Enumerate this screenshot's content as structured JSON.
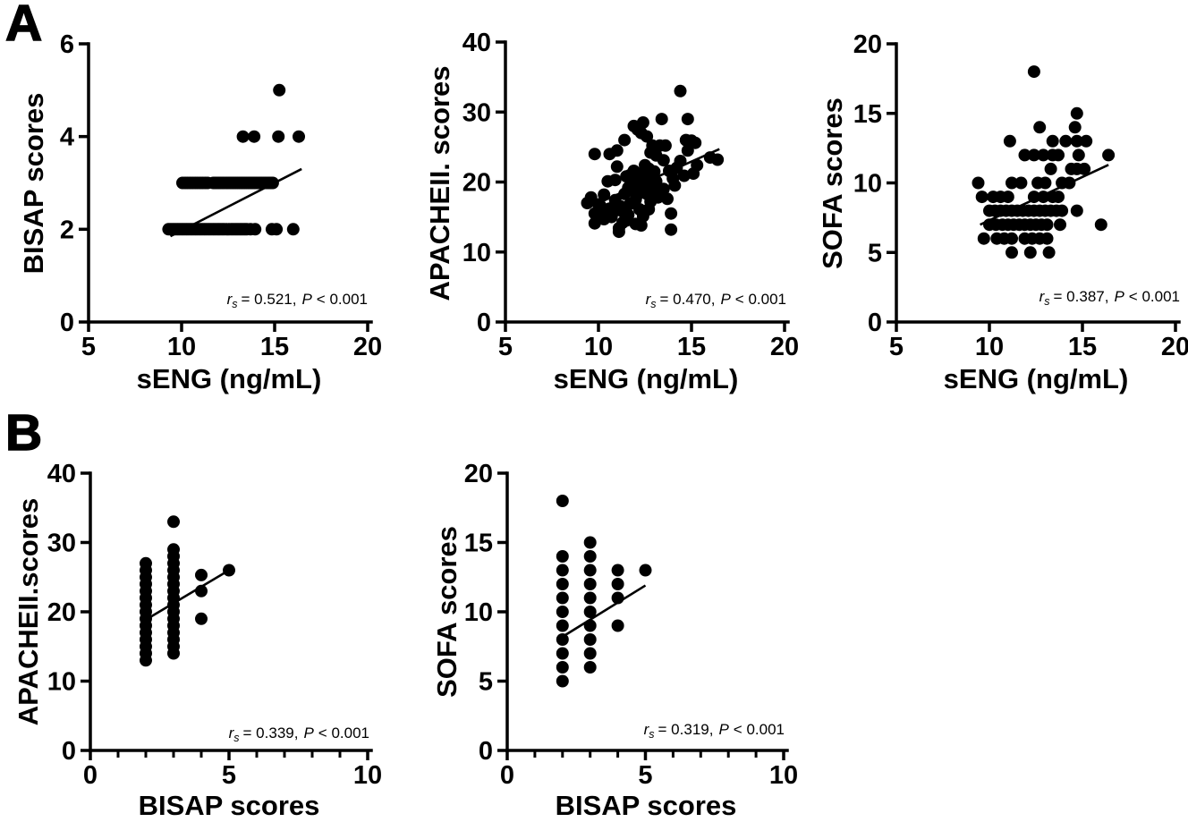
{
  "figure": {
    "ink": "#000000",
    "background": "#ffffff",
    "panel_labels": [
      {
        "label": "A"
      },
      {
        "label": "B"
      }
    ]
  },
  "chart_data": [
    {
      "type": "scatter",
      "panel": "A",
      "xlabel": "sENG (ng/mL)",
      "ylabel": "BISAP scores",
      "xlim": [
        5,
        20
      ],
      "ylim": [
        0,
        6
      ],
      "x_ticks": [
        5,
        10,
        15,
        20
      ],
      "y_ticks": [
        0,
        2,
        4,
        6
      ],
      "x_minor_ticks": [],
      "grid": false,
      "marker_color": "#000000",
      "annotation": {
        "r_label": "r",
        "r_sub": "s",
        "r_value": "= 0.521,",
        "p_label": "P",
        "p_value": "< 0.001"
      },
      "trend_line": [
        [
          9.4,
          1.85
        ],
        [
          16.45,
          3.3
        ]
      ],
      "points": [
        [
          9.3,
          2
        ],
        [
          9.42,
          2
        ],
        [
          9.54,
          2
        ],
        [
          9.66,
          2
        ],
        [
          9.78,
          2
        ],
        [
          9.9,
          2
        ],
        [
          10.02,
          2
        ],
        [
          10.14,
          2
        ],
        [
          10.26,
          2
        ],
        [
          10.38,
          2
        ],
        [
          10.5,
          2
        ],
        [
          10.62,
          2
        ],
        [
          10.74,
          2
        ],
        [
          10.86,
          2
        ],
        [
          10.98,
          2
        ],
        [
          11.1,
          2
        ],
        [
          11.22,
          2
        ],
        [
          11.34,
          2
        ],
        [
          11.46,
          2
        ],
        [
          11.58,
          2
        ],
        [
          11.7,
          2
        ],
        [
          11.82,
          2
        ],
        [
          11.94,
          2
        ],
        [
          12.06,
          2
        ],
        [
          12.18,
          2
        ],
        [
          12.3,
          2
        ],
        [
          12.42,
          2
        ],
        [
          12.54,
          2
        ],
        [
          12.66,
          2
        ],
        [
          12.78,
          2
        ],
        [
          12.9,
          2
        ],
        [
          13.02,
          2
        ],
        [
          13.14,
          2
        ],
        [
          13.26,
          2
        ],
        [
          13.38,
          2
        ],
        [
          13.5,
          2
        ],
        [
          13.7,
          2
        ],
        [
          13.95,
          2
        ],
        [
          14.85,
          2
        ],
        [
          15.1,
          2
        ],
        [
          16.0,
          2
        ],
        [
          10.05,
          3
        ],
        [
          10.19,
          3
        ],
        [
          10.32,
          3
        ],
        [
          10.46,
          3
        ],
        [
          10.59,
          3
        ],
        [
          10.73,
          3
        ],
        [
          10.86,
          3
        ],
        [
          11.0,
          3
        ],
        [
          11.13,
          3
        ],
        [
          11.27,
          3
        ],
        [
          11.4,
          3
        ],
        [
          11.7,
          3
        ],
        [
          11.8,
          3
        ],
        [
          11.9,
          3
        ],
        [
          12.0,
          3
        ],
        [
          12.1,
          3
        ],
        [
          12.2,
          3
        ],
        [
          12.3,
          3
        ],
        [
          12.4,
          3
        ],
        [
          12.5,
          3
        ],
        [
          12.6,
          3
        ],
        [
          12.7,
          3
        ],
        [
          12.8,
          3
        ],
        [
          12.9,
          3
        ],
        [
          13.0,
          3
        ],
        [
          13.1,
          3
        ],
        [
          13.2,
          3
        ],
        [
          13.3,
          3
        ],
        [
          13.4,
          3
        ],
        [
          13.5,
          3
        ],
        [
          13.6,
          3
        ],
        [
          13.7,
          3
        ],
        [
          13.8,
          3
        ],
        [
          13.9,
          3
        ],
        [
          14.0,
          3
        ],
        [
          14.1,
          3
        ],
        [
          14.2,
          3
        ],
        [
          14.3,
          3
        ],
        [
          14.4,
          3
        ],
        [
          14.5,
          3
        ],
        [
          14.6,
          3
        ],
        [
          14.7,
          3
        ],
        [
          14.8,
          3
        ],
        [
          14.9,
          3
        ],
        [
          13.3,
          4
        ],
        [
          13.9,
          4
        ],
        [
          15.2,
          4
        ],
        [
          16.3,
          4
        ],
        [
          15.25,
          5
        ]
      ]
    },
    {
      "type": "scatter",
      "panel": "A",
      "xlabel": "sENG (ng/mL)",
      "ylabel": "APACHEII. scores",
      "xlim": [
        5,
        20
      ],
      "ylim": [
        0,
        40
      ],
      "x_ticks": [
        5,
        10,
        15,
        20
      ],
      "y_ticks": [
        0,
        10,
        20,
        30,
        40
      ],
      "x_minor_ticks": [],
      "grid": false,
      "marker_color": "#000000",
      "annotation": {
        "r_label": "r",
        "r_sub": "s",
        "r_value": "= 0.470,",
        "p_label": "P",
        "p_value": "< 0.001"
      },
      "trend_line": [
        [
          9.4,
          16.3
        ],
        [
          16.5,
          24.7
        ]
      ],
      "points": [
        [
          14.4,
          33
        ],
        [
          13.4,
          29
        ],
        [
          14.8,
          29
        ],
        [
          11.9,
          28
        ],
        [
          12.4,
          28.5
        ],
        [
          12.1,
          27.5
        ],
        [
          12.3,
          27
        ],
        [
          12.6,
          26.5
        ],
        [
          11.4,
          26
        ],
        [
          14.7,
          26
        ],
        [
          15.0,
          25.9
        ],
        [
          13.3,
          25.2
        ],
        [
          12.9,
          25.2
        ],
        [
          13.6,
          25.2
        ],
        [
          15.2,
          25.6
        ],
        [
          9.8,
          24
        ],
        [
          10.6,
          24
        ],
        [
          11.0,
          24.5
        ],
        [
          12.8,
          24.2
        ],
        [
          14.8,
          24.5
        ],
        [
          16.0,
          23.5
        ],
        [
          16.4,
          23.2
        ],
        [
          14.4,
          23
        ],
        [
          13.5,
          23.1
        ],
        [
          13.1,
          23.8
        ],
        [
          12.5,
          22.4
        ],
        [
          11.9,
          21.6
        ],
        [
          11.0,
          22.2
        ],
        [
          15.3,
          22.4
        ],
        [
          14.2,
          22
        ],
        [
          13.8,
          21.6
        ],
        [
          13.0,
          21.5
        ],
        [
          12.7,
          21.9
        ],
        [
          12.3,
          21.2
        ],
        [
          11.7,
          21.0
        ],
        [
          10.9,
          20.3
        ],
        [
          10.5,
          20.1
        ],
        [
          11.5,
          20.8
        ],
        [
          12.2,
          20.1
        ],
        [
          12.7,
          20.8
        ],
        [
          13.1,
          20.1
        ],
        [
          14.6,
          20.9
        ],
        [
          15.1,
          21.2
        ],
        [
          14.0,
          20.5
        ],
        [
          12.5,
          19.8
        ],
        [
          11.9,
          19.9
        ],
        [
          12.2,
          19.3
        ],
        [
          13.0,
          19.5
        ],
        [
          13.5,
          19.0
        ],
        [
          14.1,
          19.5
        ],
        [
          11.6,
          19.2
        ],
        [
          11.4,
          18.3
        ],
        [
          11.8,
          18.8
        ],
        [
          12.1,
          18.2
        ],
        [
          12.4,
          18.9
        ],
        [
          12.6,
          18.3
        ],
        [
          12.9,
          18.8
        ],
        [
          13.3,
          18.5
        ],
        [
          10.3,
          18.2
        ],
        [
          9.6,
          17.8
        ],
        [
          10.9,
          17.4
        ],
        [
          12.0,
          17.5
        ],
        [
          12.8,
          17.2
        ],
        [
          13.2,
          17.8
        ],
        [
          13.7,
          17.6
        ],
        [
          9.4,
          17
        ],
        [
          10.1,
          16.6
        ],
        [
          10.0,
          16.8
        ],
        [
          10.6,
          16.2
        ],
        [
          11.2,
          16.5
        ],
        [
          11.7,
          16.9
        ],
        [
          12.2,
          16.1
        ],
        [
          12.7,
          16.1
        ],
        [
          10.2,
          15.9
        ],
        [
          10.8,
          15.7
        ],
        [
          11.3,
          15.8
        ],
        [
          11.6,
          15.3
        ],
        [
          9.8,
          15.5
        ],
        [
          12.4,
          15.1
        ],
        [
          13.9,
          15.5
        ],
        [
          10.7,
          15.0
        ],
        [
          10.3,
          14.7
        ],
        [
          11.5,
          14.5
        ],
        [
          11.3,
          14.2
        ],
        [
          12.0,
          14.0
        ],
        [
          9.8,
          14.1
        ],
        [
          12.3,
          13.8
        ],
        [
          11.1,
          13.4
        ],
        [
          11.1,
          12.9
        ],
        [
          13.9,
          13.2
        ]
      ]
    },
    {
      "type": "scatter",
      "panel": "A",
      "xlabel": "sENG (ng/mL)",
      "ylabel": "SOFA scores",
      "xlim": [
        5,
        20
      ],
      "ylim": [
        0,
        20
      ],
      "x_ticks": [
        5,
        10,
        15,
        20
      ],
      "y_ticks": [
        0,
        5,
        10,
        15,
        20
      ],
      "x_minor_ticks": [],
      "grid": false,
      "marker_color": "#000000",
      "annotation": {
        "r_label": "r",
        "r_sub": "s",
        "r_value": "= 0.387,",
        "p_label": "P",
        "p_value": "< 0.001"
      },
      "trend_line": [
        [
          9.5,
          7.0
        ],
        [
          16.4,
          11.3
        ]
      ],
      "points": [
        [
          12.4,
          18
        ],
        [
          14.7,
          15
        ],
        [
          12.7,
          14
        ],
        [
          14.6,
          14
        ],
        [
          11.1,
          13
        ],
        [
          13.4,
          13
        ],
        [
          14.1,
          13
        ],
        [
          14.7,
          13
        ],
        [
          15.2,
          13
        ],
        [
          11.9,
          12
        ],
        [
          12.4,
          12
        ],
        [
          12.9,
          12
        ],
        [
          13.4,
          12
        ],
        [
          13.7,
          12
        ],
        [
          14.8,
          12
        ],
        [
          16.4,
          12
        ],
        [
          13.3,
          11
        ],
        [
          14.4,
          11
        ],
        [
          14.7,
          11
        ],
        [
          15.1,
          11
        ],
        [
          9.4,
          10
        ],
        [
          11.2,
          10
        ],
        [
          11.7,
          10
        ],
        [
          12.6,
          10
        ],
        [
          13.0,
          10
        ],
        [
          13.9,
          10
        ],
        [
          14.3,
          10
        ],
        [
          9.6,
          9
        ],
        [
          10.2,
          9
        ],
        [
          10.6,
          9
        ],
        [
          11.0,
          9
        ],
        [
          12.4,
          9
        ],
        [
          12.9,
          9
        ],
        [
          13.4,
          9
        ],
        [
          13.7,
          9
        ],
        [
          10.0,
          8
        ],
        [
          10.3,
          8
        ],
        [
          10.6,
          8
        ],
        [
          10.9,
          8
        ],
        [
          11.2,
          8
        ],
        [
          11.5,
          8
        ],
        [
          11.8,
          8
        ],
        [
          12.1,
          8
        ],
        [
          12.4,
          8
        ],
        [
          12.7,
          8
        ],
        [
          13.0,
          8
        ],
        [
          13.3,
          8
        ],
        [
          13.6,
          8
        ],
        [
          13.9,
          8
        ],
        [
          14.7,
          8
        ],
        [
          10.0,
          7
        ],
        [
          10.35,
          7
        ],
        [
          10.7,
          7
        ],
        [
          11.0,
          7
        ],
        [
          11.3,
          7
        ],
        [
          11.6,
          7
        ],
        [
          11.9,
          7
        ],
        [
          12.2,
          7
        ],
        [
          12.5,
          7
        ],
        [
          12.8,
          7
        ],
        [
          13.1,
          7
        ],
        [
          13.8,
          7
        ],
        [
          16.0,
          7
        ],
        [
          9.7,
          6
        ],
        [
          10.4,
          6
        ],
        [
          10.8,
          6
        ],
        [
          11.2,
          6
        ],
        [
          11.9,
          6
        ],
        [
          12.3,
          6
        ],
        [
          12.7,
          6
        ],
        [
          13.1,
          6
        ],
        [
          11.2,
          5
        ],
        [
          12.2,
          5
        ],
        [
          13.2,
          5
        ]
      ]
    },
    {
      "type": "scatter",
      "panel": "B",
      "xlabel": "BISAP scores",
      "ylabel": "APACHEII.scores",
      "xlim": [
        0,
        10
      ],
      "ylim": [
        0,
        40
      ],
      "x_ticks": [
        0,
        5,
        10
      ],
      "y_ticks": [
        0,
        10,
        20,
        30,
        40
      ],
      "x_minor_ticks": [
        1,
        2,
        3,
        4,
        6,
        7,
        8,
        9
      ],
      "grid": false,
      "marker_color": "#000000",
      "annotation": {
        "r_label": "r",
        "r_sub": "s",
        "r_value": "= 0.339,",
        "p_label": "P",
        "p_value": "< 0.001"
      },
      "trend_line": [
        [
          2.1,
          19.1
        ],
        [
          5.0,
          26.0
        ]
      ],
      "points": [
        [
          2,
          13
        ],
        [
          2,
          14
        ],
        [
          2,
          15
        ],
        [
          2,
          16
        ],
        [
          2,
          17
        ],
        [
          2,
          18
        ],
        [
          2,
          19
        ],
        [
          2,
          20
        ],
        [
          2,
          21
        ],
        [
          2,
          22
        ],
        [
          2,
          23
        ],
        [
          2,
          24
        ],
        [
          2,
          25
        ],
        [
          2,
          26
        ],
        [
          2,
          27
        ],
        [
          3,
          14
        ],
        [
          3,
          15
        ],
        [
          3,
          16
        ],
        [
          3,
          17
        ],
        [
          3,
          18
        ],
        [
          3,
          19
        ],
        [
          3,
          20
        ],
        [
          3,
          21
        ],
        [
          3,
          22
        ],
        [
          3,
          23
        ],
        [
          3,
          24
        ],
        [
          3,
          25
        ],
        [
          3,
          26
        ],
        [
          3,
          27
        ],
        [
          3,
          28
        ],
        [
          3,
          29
        ],
        [
          3,
          33
        ],
        [
          4,
          19
        ],
        [
          4,
          23
        ],
        [
          4,
          25.3
        ],
        [
          5,
          26
        ]
      ]
    },
    {
      "type": "scatter",
      "panel": "B",
      "xlabel": "BISAP scores",
      "ylabel": "SOFA scores",
      "xlim": [
        0,
        10
      ],
      "ylim": [
        0,
        20
      ],
      "x_ticks": [
        0,
        5,
        10
      ],
      "y_ticks": [
        0,
        5,
        10,
        15,
        20
      ],
      "x_minor_ticks": [
        1,
        2,
        3,
        4,
        6,
        7,
        8,
        9
      ],
      "grid": false,
      "marker_color": "#000000",
      "annotation": {
        "r_label": "r",
        "r_sub": "s",
        "r_value": "= 0.319,",
        "p_label": "P",
        "p_value": "< 0.001"
      },
      "trend_line": [
        [
          2.0,
          8.2
        ],
        [
          5.0,
          11.9
        ]
      ],
      "points": [
        [
          2,
          5
        ],
        [
          2,
          6
        ],
        [
          2,
          7
        ],
        [
          2,
          8
        ],
        [
          2,
          9
        ],
        [
          2,
          10
        ],
        [
          2,
          11
        ],
        [
          2,
          12
        ],
        [
          2,
          13
        ],
        [
          2,
          14
        ],
        [
          2,
          18
        ],
        [
          3,
          6
        ],
        [
          3,
          7
        ],
        [
          3,
          8
        ],
        [
          3,
          9
        ],
        [
          3,
          10
        ],
        [
          3,
          11
        ],
        [
          3,
          12
        ],
        [
          3,
          13
        ],
        [
          3,
          14
        ],
        [
          3,
          15
        ],
        [
          4,
          9
        ],
        [
          4,
          11
        ],
        [
          4,
          12
        ],
        [
          4,
          13
        ],
        [
          5,
          13
        ]
      ]
    }
  ]
}
